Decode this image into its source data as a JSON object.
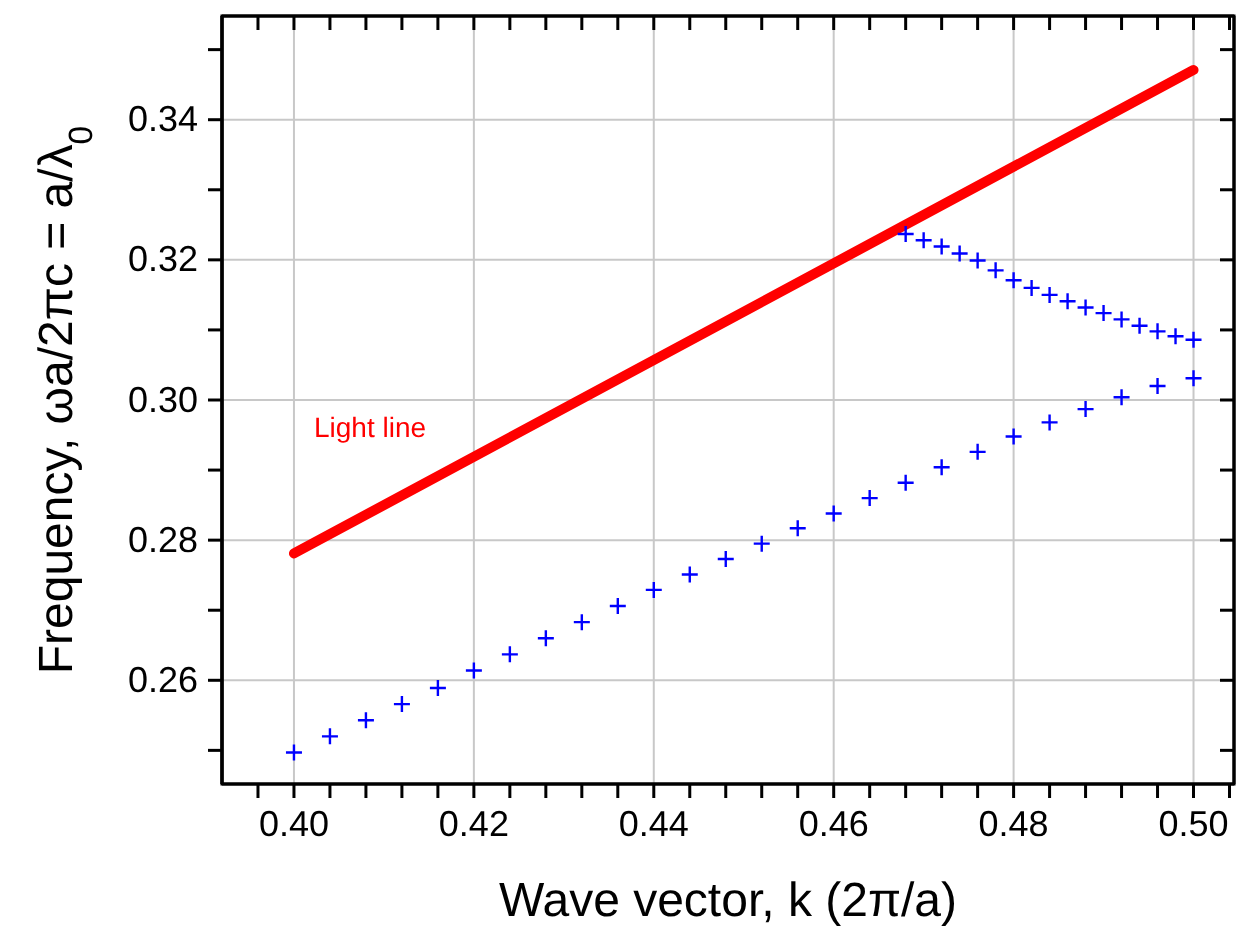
{
  "chart_data": {
    "type": "line",
    "xlabel": "Wave vector, k (2π/a)",
    "ylabel": "Frequency, ωa/2πc = a/λ$_{0}$",
    "xlim": [
      0.392,
      0.5045
    ],
    "ylim": [
      0.2452,
      0.3548
    ],
    "xticks": [
      {
        "value": 0.396,
        "label": null
      },
      {
        "value": 0.4,
        "label": "0.40"
      },
      {
        "value": 0.404,
        "label": null
      },
      {
        "value": 0.408,
        "label": null
      },
      {
        "value": 0.412,
        "label": null
      },
      {
        "value": 0.416,
        "label": null
      },
      {
        "value": 0.42,
        "label": "0.42"
      },
      {
        "value": 0.424,
        "label": null
      },
      {
        "value": 0.428,
        "label": null
      },
      {
        "value": 0.432,
        "label": null
      },
      {
        "value": 0.436,
        "label": null
      },
      {
        "value": 0.44,
        "label": "0.44"
      },
      {
        "value": 0.444,
        "label": null
      },
      {
        "value": 0.448,
        "label": null
      },
      {
        "value": 0.452,
        "label": null
      },
      {
        "value": 0.456,
        "label": null
      },
      {
        "value": 0.46,
        "label": "0.46"
      },
      {
        "value": 0.464,
        "label": null
      },
      {
        "value": 0.468,
        "label": null
      },
      {
        "value": 0.472,
        "label": null
      },
      {
        "value": 0.476,
        "label": null
      },
      {
        "value": 0.48,
        "label": "0.48"
      },
      {
        "value": 0.484,
        "label": null
      },
      {
        "value": 0.488,
        "label": null
      },
      {
        "value": 0.492,
        "label": null
      },
      {
        "value": 0.496,
        "label": null
      },
      {
        "value": 0.5,
        "label": "0.50"
      },
      {
        "value": 0.504,
        "label": null
      }
    ],
    "yticks": [
      {
        "value": 0.25,
        "label": null
      },
      {
        "value": 0.26,
        "label": "0.26"
      },
      {
        "value": 0.27,
        "label": null
      },
      {
        "value": 0.28,
        "label": "0.28"
      },
      {
        "value": 0.29,
        "label": null
      },
      {
        "value": 0.3,
        "label": "0.30"
      },
      {
        "value": 0.31,
        "label": null
      },
      {
        "value": 0.32,
        "label": "0.32"
      },
      {
        "value": 0.33,
        "label": null
      },
      {
        "value": 0.34,
        "label": "0.34"
      },
      {
        "value": 0.35,
        "label": null
      }
    ],
    "grid": true,
    "series": [
      {
        "name": "Light line",
        "color": "#ff0000",
        "line_style": "solid",
        "marker": "none",
        "x": [
          0.4,
          0.5
        ],
        "values": [
          0.2781,
          0.3471
        ]
      },
      {
        "type": "scatter",
        "color": "#0000ff",
        "marker": "cross",
        "x": [
          0.4,
          0.404,
          0.408,
          0.412,
          0.416,
          0.42,
          0.424,
          0.428,
          0.432,
          0.436,
          0.44,
          0.444,
          0.448,
          0.452,
          0.456,
          0.46,
          0.464,
          0.468,
          0.472,
          0.476,
          0.48,
          0.484,
          0.488,
          0.492,
          0.496,
          0.5
        ],
        "values": [
          0.2497,
          0.252,
          0.2543,
          0.2566,
          0.2589,
          0.2614,
          0.2637,
          0.266,
          0.2683,
          0.2706,
          0.2729,
          0.2751,
          0.2773,
          0.2795,
          0.2817,
          0.2838,
          0.286,
          0.2882,
          0.2904,
          0.2926,
          0.2948,
          0.2968,
          0.2987,
          0.3004,
          0.302,
          0.3031
        ]
      },
      {
        "type": "scatter",
        "color": "#0000ff",
        "marker": "cross",
        "x": [
          0.468,
          0.47,
          0.472,
          0.474,
          0.476,
          0.478,
          0.48,
          0.482,
          0.484,
          0.486,
          0.488,
          0.49,
          0.492,
          0.494,
          0.496,
          0.498,
          0.5
        ],
        "values": [
          0.3237,
          0.3228,
          0.3219,
          0.3209,
          0.3199,
          0.3185,
          0.3171,
          0.316,
          0.315,
          0.3141,
          0.3132,
          0.3124,
          0.3115,
          0.3106,
          0.3098,
          0.3091,
          0.3086
        ]
      }
    ]
  }
}
